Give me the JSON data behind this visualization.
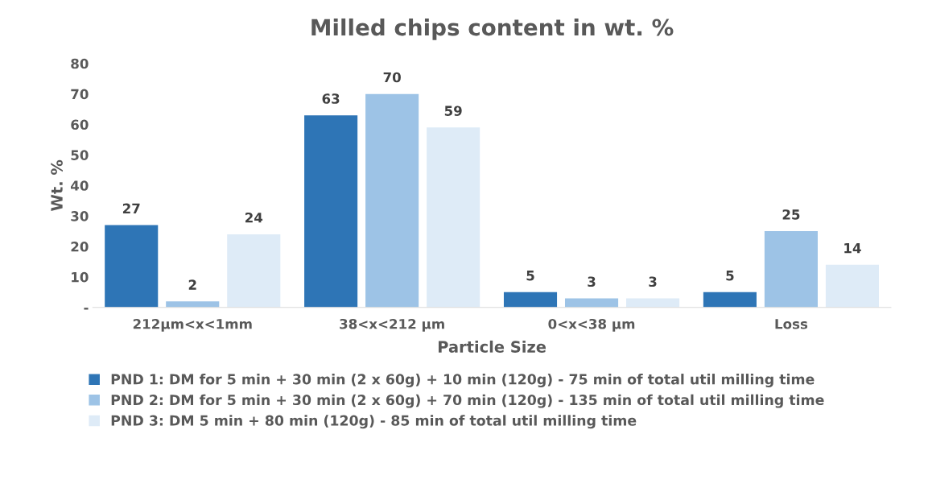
{
  "chart_data": {
    "type": "bar",
    "title": "Milled chips content in wt. %",
    "xlabel": "Particle Size",
    "ylabel": "Wt. %",
    "categories": [
      "212µm<x<1mm",
      "38<x<212 µm",
      "0<x<38 µm",
      "Loss"
    ],
    "series": [
      {
        "name": "PND 1: DM for 5 min + 30 min (2 x 60g) + 10 min (120g) - 75 min of total util milling time",
        "color": "#2e75b6",
        "values": [
          27,
          63,
          5,
          5
        ]
      },
      {
        "name": "PND 2: DM for 5 min + 30 min (2 x 60g) + 70 min (120g) - 135 min of total util milling time",
        "color": "#9dc3e6",
        "values": [
          2,
          70,
          3,
          25
        ]
      },
      {
        "name": "PND 3: DM 5 min + 80 min (120g) - 85 min of total util milling time",
        "color": "#deebf7",
        "values": [
          24,
          59,
          3,
          14
        ]
      }
    ],
    "ylim": [
      0,
      80
    ],
    "yticks": [
      {
        "value": 0,
        "label": "-"
      },
      10,
      20,
      30,
      40,
      50,
      60,
      70,
      80
    ],
    "data_labels": true,
    "grid": false,
    "legend": "bottom"
  }
}
